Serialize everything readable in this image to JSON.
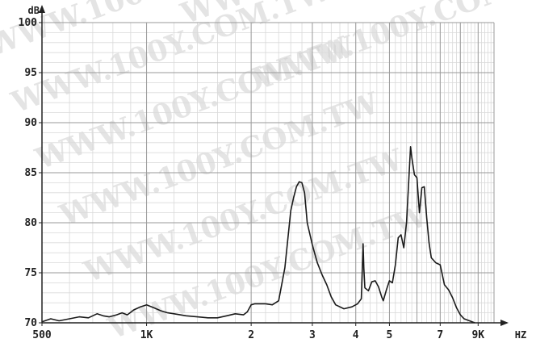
{
  "watermark": "WWW.100Y.COM.TW",
  "colors": {
    "curve": "#1a1a1a",
    "major_grid": "#9a9a9a",
    "minor_grid": "#d9d9d9",
    "axis": "#222222",
    "watermark": "#cfcfcf"
  },
  "chart_data": {
    "type": "line",
    "x_scale": "log",
    "xlim": [
      500,
      10000
    ],
    "ylim": [
      70,
      100
    ],
    "x_unit": "HZ",
    "y_unit": "dB",
    "x_ticks": [
      {
        "value": 500,
        "label": "500"
      },
      {
        "value": 1000,
        "label": "1K"
      },
      {
        "value": 2000,
        "label": "2"
      },
      {
        "value": 3000,
        "label": "3"
      },
      {
        "value": 4000,
        "label": "4"
      },
      {
        "value": 5000,
        "label": "5"
      },
      {
        "value": 7000,
        "label": "7"
      },
      {
        "value": 9000,
        "label": "9K"
      }
    ],
    "y_ticks": [
      {
        "value": 70,
        "label": "70"
      },
      {
        "value": 75,
        "label": "75"
      },
      {
        "value": 80,
        "label": "80"
      },
      {
        "value": 85,
        "label": "85"
      },
      {
        "value": 90,
        "label": "90"
      },
      {
        "value": 95,
        "label": "95"
      },
      {
        "value": 100,
        "label": "100"
      }
    ],
    "grid": true,
    "series": [
      {
        "points": [
          [
            500,
            70.1
          ],
          [
            530,
            70.4
          ],
          [
            560,
            70.2
          ],
          [
            600,
            70.4
          ],
          [
            640,
            70.6
          ],
          [
            680,
            70.5
          ],
          [
            720,
            70.9
          ],
          [
            750,
            70.7
          ],
          [
            780,
            70.6
          ],
          [
            820,
            70.8
          ],
          [
            850,
            71.0
          ],
          [
            880,
            70.8
          ],
          [
            920,
            71.3
          ],
          [
            960,
            71.6
          ],
          [
            1000,
            71.8
          ],
          [
            1050,
            71.5
          ],
          [
            1100,
            71.2
          ],
          [
            1150,
            71.0
          ],
          [
            1200,
            70.9
          ],
          [
            1300,
            70.7
          ],
          [
            1400,
            70.6
          ],
          [
            1500,
            70.5
          ],
          [
            1600,
            70.5
          ],
          [
            1700,
            70.7
          ],
          [
            1800,
            70.9
          ],
          [
            1900,
            70.8
          ],
          [
            1950,
            71.1
          ],
          [
            2000,
            71.8
          ],
          [
            2050,
            71.9
          ],
          [
            2200,
            71.9
          ],
          [
            2300,
            71.8
          ],
          [
            2400,
            72.2
          ],
          [
            2500,
            75.5
          ],
          [
            2600,
            81.2
          ],
          [
            2650,
            82.5
          ],
          [
            2700,
            83.6
          ],
          [
            2750,
            84.1
          ],
          [
            2800,
            84.0
          ],
          [
            2850,
            83.0
          ],
          [
            2900,
            80.0
          ],
          [
            3000,
            77.8
          ],
          [
            3100,
            76.0
          ],
          [
            3200,
            74.8
          ],
          [
            3300,
            73.8
          ],
          [
            3400,
            72.6
          ],
          [
            3500,
            71.8
          ],
          [
            3700,
            71.4
          ],
          [
            3900,
            71.6
          ],
          [
            4050,
            71.9
          ],
          [
            4150,
            72.4
          ],
          [
            4200,
            77.9
          ],
          [
            4220,
            75.5
          ],
          [
            4250,
            73.5
          ],
          [
            4350,
            73.2
          ],
          [
            4450,
            74.1
          ],
          [
            4550,
            74.2
          ],
          [
            4650,
            73.6
          ],
          [
            4750,
            72.6
          ],
          [
            4800,
            72.2
          ],
          [
            4900,
            73.3
          ],
          [
            5000,
            74.2
          ],
          [
            5100,
            74.0
          ],
          [
            5200,
            75.8
          ],
          [
            5300,
            78.5
          ],
          [
            5400,
            78.8
          ],
          [
            5500,
            77.5
          ],
          [
            5600,
            80.0
          ],
          [
            5700,
            85.0
          ],
          [
            5750,
            87.6
          ],
          [
            5800,
            86.5
          ],
          [
            5900,
            84.8
          ],
          [
            6000,
            84.5
          ],
          [
            6100,
            81.0
          ],
          [
            6200,
            83.5
          ],
          [
            6300,
            83.6
          ],
          [
            6400,
            80.5
          ],
          [
            6500,
            78.0
          ],
          [
            6600,
            76.5
          ],
          [
            6800,
            76.0
          ],
          [
            7000,
            75.8
          ],
          [
            7200,
            73.8
          ],
          [
            7400,
            73.3
          ],
          [
            7600,
            72.5
          ],
          [
            7800,
            71.5
          ],
          [
            8000,
            70.8
          ],
          [
            8200,
            70.4
          ],
          [
            8500,
            70.2
          ],
          [
            8800,
            70.0
          ]
        ]
      }
    ]
  }
}
